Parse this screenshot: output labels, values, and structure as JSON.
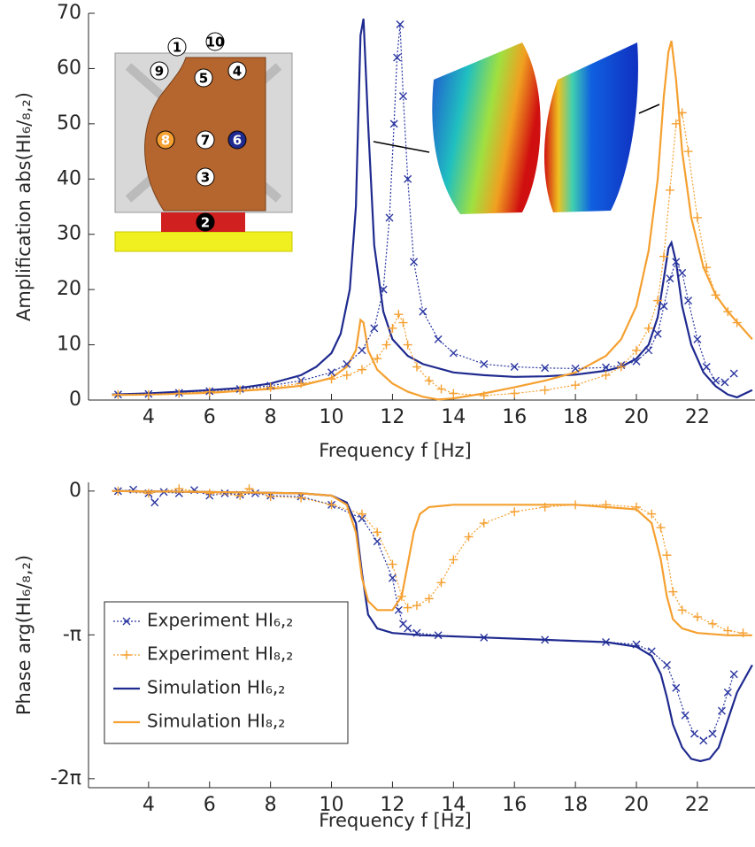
{
  "chart_data": [
    {
      "type": "line",
      "ylabel": "Amplification abs(HI₆/₈,₂)",
      "xlabel": "Frequency f [Hz]",
      "xlim": [
        2.03,
        23.89
      ],
      "ylim": [
        0,
        70
      ],
      "xticks": [
        4,
        6,
        8,
        10,
        12,
        14,
        16,
        18,
        20,
        22
      ],
      "yticks": [
        0,
        10,
        20,
        30,
        40,
        50,
        60,
        70
      ],
      "inset_labels": [
        "1",
        "9",
        "5",
        "10",
        "4",
        "8",
        "7",
        "6",
        "3",
        "2"
      ],
      "series": [
        {
          "color": "#1f2a8f",
          "marker": "none",
          "x": [
            2.8,
            4,
            5,
            6,
            7,
            8,
            9,
            9.5,
            10,
            10.3,
            10.6,
            10.8,
            10.95,
            11.05,
            11.2,
            11.4,
            11.7,
            12,
            12.5,
            13,
            14,
            15,
            16,
            17,
            18,
            19,
            19.5,
            20,
            20.4,
            20.7,
            20.9,
            21.05,
            21.15,
            21.3,
            21.5,
            21.8,
            22.2,
            22.6,
            23,
            23.3,
            23.8
          ],
          "values": [
            1,
            1.2,
            1.5,
            1.8,
            2.2,
            3,
            4.5,
            6,
            8.5,
            12,
            20,
            35,
            66,
            69,
            50,
            28,
            16,
            11,
            8,
            6.5,
            5,
            4.5,
            4.2,
            4.3,
            4.6,
            5.3,
            6,
            7.5,
            10,
            15,
            22,
            27.5,
            28.5,
            25,
            17,
            10,
            5,
            2.5,
            1,
            0.5,
            1.8
          ]
        },
        {
          "color": "#f5a030",
          "marker": "none",
          "x": [
            2.8,
            4,
            6,
            8,
            9,
            10,
            10.5,
            10.8,
            10.95,
            11.05,
            11.2,
            11.5,
            12,
            12.5,
            13,
            13.5,
            14,
            15,
            16,
            17,
            18,
            19,
            19.5,
            20,
            20.4,
            20.7,
            20.9,
            21.05,
            21.15,
            21.3,
            21.5,
            21.8,
            22.2,
            22.6,
            23,
            23.8
          ],
          "values": [
            0.9,
            1,
            1.3,
            2,
            2.6,
            4,
            6,
            9,
            14.5,
            14,
            9,
            5.5,
            3,
            1.5,
            0.6,
            0.1,
            0.3,
            1.2,
            2.3,
            3.5,
            5,
            8,
            11,
            17,
            27,
            40,
            55,
            63,
            65,
            58,
            45,
            33,
            24,
            19,
            16,
            11
          ]
        },
        {
          "color": "#2a36a0",
          "marker": "x",
          "x": [
            3,
            4,
            5,
            6,
            7,
            8,
            9,
            10,
            10.5,
            11,
            11.4,
            11.7,
            11.9,
            12.05,
            12.15,
            12.25,
            12.35,
            12.5,
            12.7,
            13,
            13.5,
            14,
            15,
            16,
            17,
            18,
            19,
            19.5,
            20,
            20.4,
            20.7,
            20.9,
            21.1,
            21.3,
            21.5,
            21.7,
            22,
            22.3,
            22.6,
            22.9,
            23.2
          ],
          "values": [
            1,
            1.1,
            1.3,
            1.6,
            2,
            2.6,
            3.5,
            5,
            6.5,
            9,
            13,
            20,
            33,
            50,
            62,
            68,
            55,
            40,
            25,
            16,
            11,
            8.5,
            6.5,
            6,
            5.8,
            5.7,
            5.9,
            6.3,
            7,
            9,
            12,
            17,
            22,
            25,
            23,
            18,
            11,
            6,
            3.5,
            3.2,
            4.8
          ]
        },
        {
          "color": "#f5a030",
          "marker": "+",
          "x": [
            3,
            4,
            5,
            6,
            7,
            8,
            9,
            10,
            10.5,
            11,
            11.5,
            11.8,
            12,
            12.2,
            12.35,
            12.5,
            12.8,
            13.2,
            13.6,
            14,
            15,
            16,
            17,
            18,
            19,
            19.5,
            20,
            20.4,
            20.7,
            20.9,
            21.1,
            21.3,
            21.5,
            21.7,
            22,
            22.3,
            22.6,
            23,
            23.3
          ],
          "values": [
            1,
            1,
            1.2,
            1.5,
            1.8,
            2.3,
            3,
            3.8,
            4.5,
            5.5,
            7.5,
            10,
            13,
            15.5,
            14,
            10,
            6,
            3.5,
            2,
            1.2,
            0.8,
            1.2,
            1.8,
            2.7,
            4.5,
            6,
            9,
            13,
            18,
            26,
            38,
            50,
            52,
            45,
            33,
            24,
            19,
            16,
            14
          ]
        }
      ]
    },
    {
      "type": "line",
      "ylabel": "Phase arg(HI₆/₈,₂)",
      "xlabel": "Frequency f [Hz]",
      "xlim": [
        2.03,
        23.89
      ],
      "ylim": [
        -6.48,
        0.19
      ],
      "xticks": [
        4,
        6,
        8,
        10,
        12,
        14,
        16,
        18,
        20,
        22
      ],
      "yticks": [
        {
          "value": -6.2832,
          "label": "-2π"
        },
        {
          "value": -3.1416,
          "label": "-π"
        },
        0
      ],
      "legend": "lower left",
      "series": [
        {
          "name": "Experiment HI₆,₂",
          "color": "#2a36a0",
          "marker": "x",
          "x": [
            3,
            3.5,
            4,
            4.2,
            4.5,
            5,
            5.5,
            6,
            6.5,
            7,
            7.5,
            8,
            9,
            10,
            11,
            11.5,
            12,
            12.2,
            12.35,
            12.5,
            12.8,
            13.5,
            15,
            17,
            19,
            20,
            20.5,
            21,
            21.3,
            21.6,
            21.9,
            22.2,
            22.5,
            22.8,
            23,
            23.2
          ],
          "values": [
            0,
            0.03,
            -0.05,
            -0.25,
            -0.02,
            -0.05,
            0.02,
            -0.1,
            -0.05,
            -0.08,
            -0.05,
            -0.1,
            -0.12,
            -0.3,
            -0.6,
            -1.1,
            -1.9,
            -2.6,
            -2.9,
            -3.0,
            -3.1,
            -3.15,
            -3.2,
            -3.25,
            -3.3,
            -3.35,
            -3.5,
            -3.8,
            -4.3,
            -4.9,
            -5.3,
            -5.45,
            -5.3,
            -4.8,
            -4.4,
            -4.0
          ]
        },
        {
          "name": "Experiment HI₈,₂",
          "color": "#f5a030",
          "marker": "+",
          "x": [
            3,
            4,
            5,
            6,
            7,
            7.3,
            8,
            9,
            10,
            11,
            11.5,
            12,
            12.3,
            12.5,
            12.8,
            13.2,
            13.6,
            14,
            14.5,
            15,
            16,
            17,
            18,
            19,
            20,
            20.5,
            20.8,
            21,
            21.2,
            21.5,
            22,
            22.5,
            23,
            23.5
          ],
          "values": [
            0,
            -0.05,
            0.05,
            -0.05,
            -0.1,
            0.05,
            -0.12,
            -0.15,
            -0.3,
            -0.5,
            -0.9,
            -1.6,
            -2.3,
            -2.55,
            -2.5,
            -2.35,
            -2.0,
            -1.5,
            -1.0,
            -0.7,
            -0.45,
            -0.35,
            -0.3,
            -0.3,
            -0.35,
            -0.5,
            -0.8,
            -1.4,
            -2.2,
            -2.6,
            -2.75,
            -2.9,
            -3.05,
            -3.1
          ]
        },
        {
          "name": "Simulation HI₆,₂",
          "color": "#1f2a8f",
          "marker": "none",
          "x": [
            2.8,
            6,
            9,
            10,
            10.5,
            10.8,
            11,
            11.2,
            11.5,
            12,
            13,
            15,
            17,
            19,
            20,
            20.5,
            20.8,
            21,
            21.2,
            21.5,
            21.8,
            22.1,
            22.4,
            22.7,
            23,
            23.3,
            23.8
          ],
          "values": [
            0,
            -0.02,
            -0.05,
            -0.1,
            -0.25,
            -0.7,
            -1.8,
            -2.7,
            -3.0,
            -3.1,
            -3.15,
            -3.2,
            -3.25,
            -3.3,
            -3.4,
            -3.6,
            -4.0,
            -4.5,
            -5.1,
            -5.6,
            -5.85,
            -5.9,
            -5.85,
            -5.6,
            -5.0,
            -4.4,
            -3.8
          ]
        },
        {
          "name": "Simulation HI₈,₂",
          "color": "#f5a030",
          "marker": "none",
          "x": [
            2.8,
            6,
            9,
            10,
            10.5,
            10.8,
            11,
            11.2,
            11.5,
            12,
            12.3,
            12.5,
            12.7,
            12.9,
            13.2,
            14,
            16,
            18,
            20,
            20.5,
            20.8,
            21,
            21.2,
            21.5,
            22,
            23,
            23.8
          ],
          "values": [
            0,
            -0.02,
            -0.05,
            -0.1,
            -0.3,
            -0.9,
            -1.9,
            -2.4,
            -2.6,
            -2.6,
            -2.3,
            -1.6,
            -0.9,
            -0.5,
            -0.35,
            -0.3,
            -0.3,
            -0.3,
            -0.4,
            -0.7,
            -1.5,
            -2.3,
            -2.8,
            -3.0,
            -3.1,
            -3.15,
            -3.15
          ]
        }
      ]
    }
  ]
}
